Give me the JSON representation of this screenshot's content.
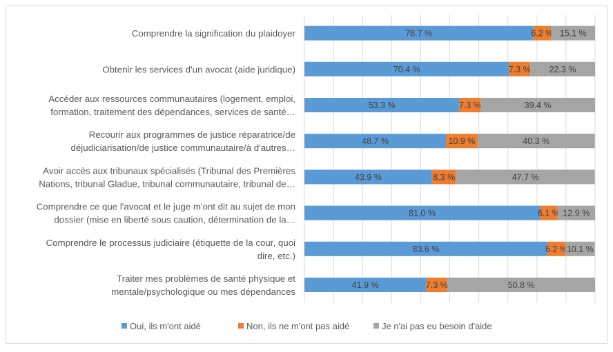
{
  "chart_data": {
    "type": "bar",
    "orientation": "horizontal",
    "stacked": true,
    "xlim": [
      0,
      100
    ],
    "grid": true,
    "legend_position": "bottom",
    "categories": [
      [
        "Comprendre la signification du plaidoyer"
      ],
      [
        "Obtenir les services d'un avocat (aide juridique)"
      ],
      [
        "Accéder aux ressources communautaires (logement, emploi,",
        "formation, traitement des dépendances, services de santé…"
      ],
      [
        "Recourir aux programmes de justice réparatrice/de",
        "déjudiciarisation/de justice communautaire/à d'autres…"
      ],
      [
        "Avoir accès aux tribunaux spécialisés (Tribunal des Premières",
        "Nations, tribunal Gladue, tribunal communautaire, tribunal de…"
      ],
      [
        "Comprendre ce que l'avocat et le juge m'ont dit au sujet de mon",
        "dossier (mise en liberté sous caution, détermination de la…"
      ],
      [
        "Comprendre le processus judiciaire (étiquette de la cour, quoi",
        "dire, etc.)"
      ],
      [
        "Traiter mes problèmes de santé physique et",
        "mentale/psychologique ou mes dépendances"
      ]
    ],
    "series": [
      {
        "name": "Oui, ils m'ont aidé",
        "color": "#5b9bd5",
        "values": [
          78.7,
          70.4,
          53.3,
          48.7,
          43.9,
          81.0,
          83.6,
          41.9
        ]
      },
      {
        "name": "Non, ils ne m'ont pas aidé",
        "color": "#ed7d31",
        "values": [
          6.2,
          7.3,
          7.3,
          10.9,
          8.3,
          6.1,
          6.2,
          7.3
        ]
      },
      {
        "name": "Je n'ai pas eu besoin d'aide",
        "color": "#a5a5a5",
        "values": [
          15.1,
          22.3,
          39.4,
          40.3,
          47.7,
          12.9,
          10.1,
          50.8
        ]
      }
    ],
    "value_suffix": " %"
  }
}
